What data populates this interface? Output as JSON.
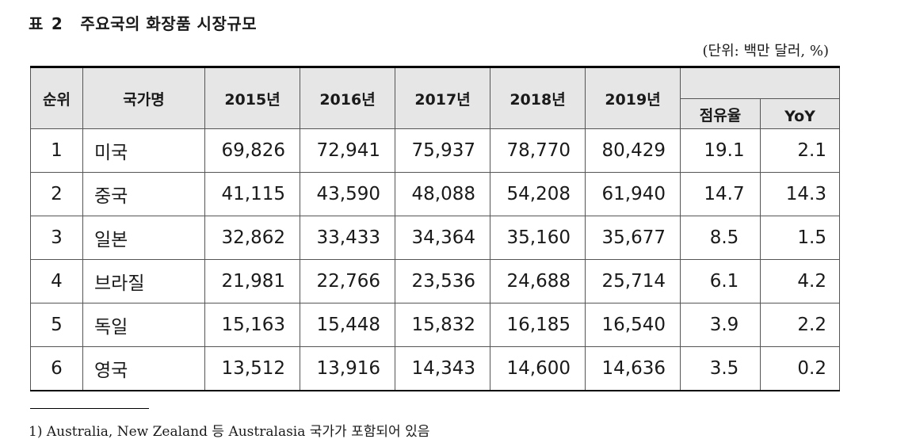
{
  "title": {
    "label": "표",
    "number": "2",
    "text": "주요국의 화장품 시장규모"
  },
  "unit_note": "(단위: 백만 달러, %)",
  "table": {
    "headers": {
      "rank": "순위",
      "country": "국가명",
      "years": [
        "2015년",
        "2016년",
        "2017년",
        "2018년",
        "2019년"
      ],
      "share": "점유율",
      "yoy": "YoY"
    },
    "rows": [
      {
        "rank": "1",
        "country": "미국",
        "values": [
          "69,826",
          "72,941",
          "75,937",
          "78,770",
          "80,429"
        ],
        "share": "19.1",
        "yoy": "2.1"
      },
      {
        "rank": "2",
        "country": "중국",
        "values": [
          "41,115",
          "43,590",
          "48,088",
          "54,208",
          "61,940"
        ],
        "share": "14.7",
        "yoy": "14.3"
      },
      {
        "rank": "3",
        "country": "일본",
        "values": [
          "32,862",
          "33,433",
          "34,364",
          "35,160",
          "35,677"
        ],
        "share": "8.5",
        "yoy": "1.5"
      },
      {
        "rank": "4",
        "country": "브라질",
        "values": [
          "21,981",
          "22,766",
          "23,536",
          "24,688",
          "25,714"
        ],
        "share": "6.1",
        "yoy": "4.2"
      },
      {
        "rank": "5",
        "country": "독일",
        "values": [
          "15,163",
          "15,448",
          "15,832",
          "16,185",
          "16,540"
        ],
        "share": "3.9",
        "yoy": "2.2"
      },
      {
        "rank": "6",
        "country": "영국",
        "values": [
          "13,512",
          "13,916",
          "14,343",
          "14,600",
          "14,636"
        ],
        "share": "3.5",
        "yoy": "0.2"
      }
    ]
  },
  "footnote": "1) Australia, New Zealand 등 Australasia 국가가 포함되어 있음"
}
